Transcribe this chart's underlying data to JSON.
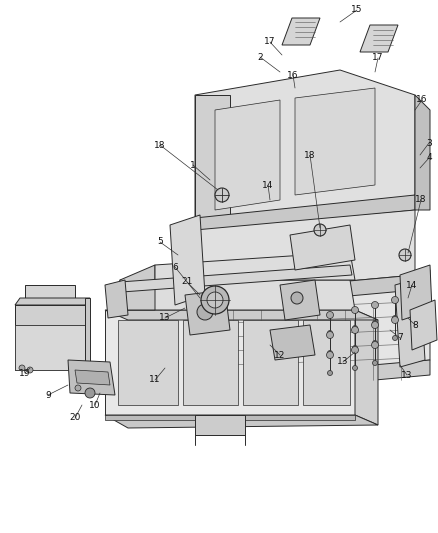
{
  "bg_color": "#ffffff",
  "fig_width": 4.38,
  "fig_height": 5.33,
  "dpi": 100,
  "image_b64": ""
}
